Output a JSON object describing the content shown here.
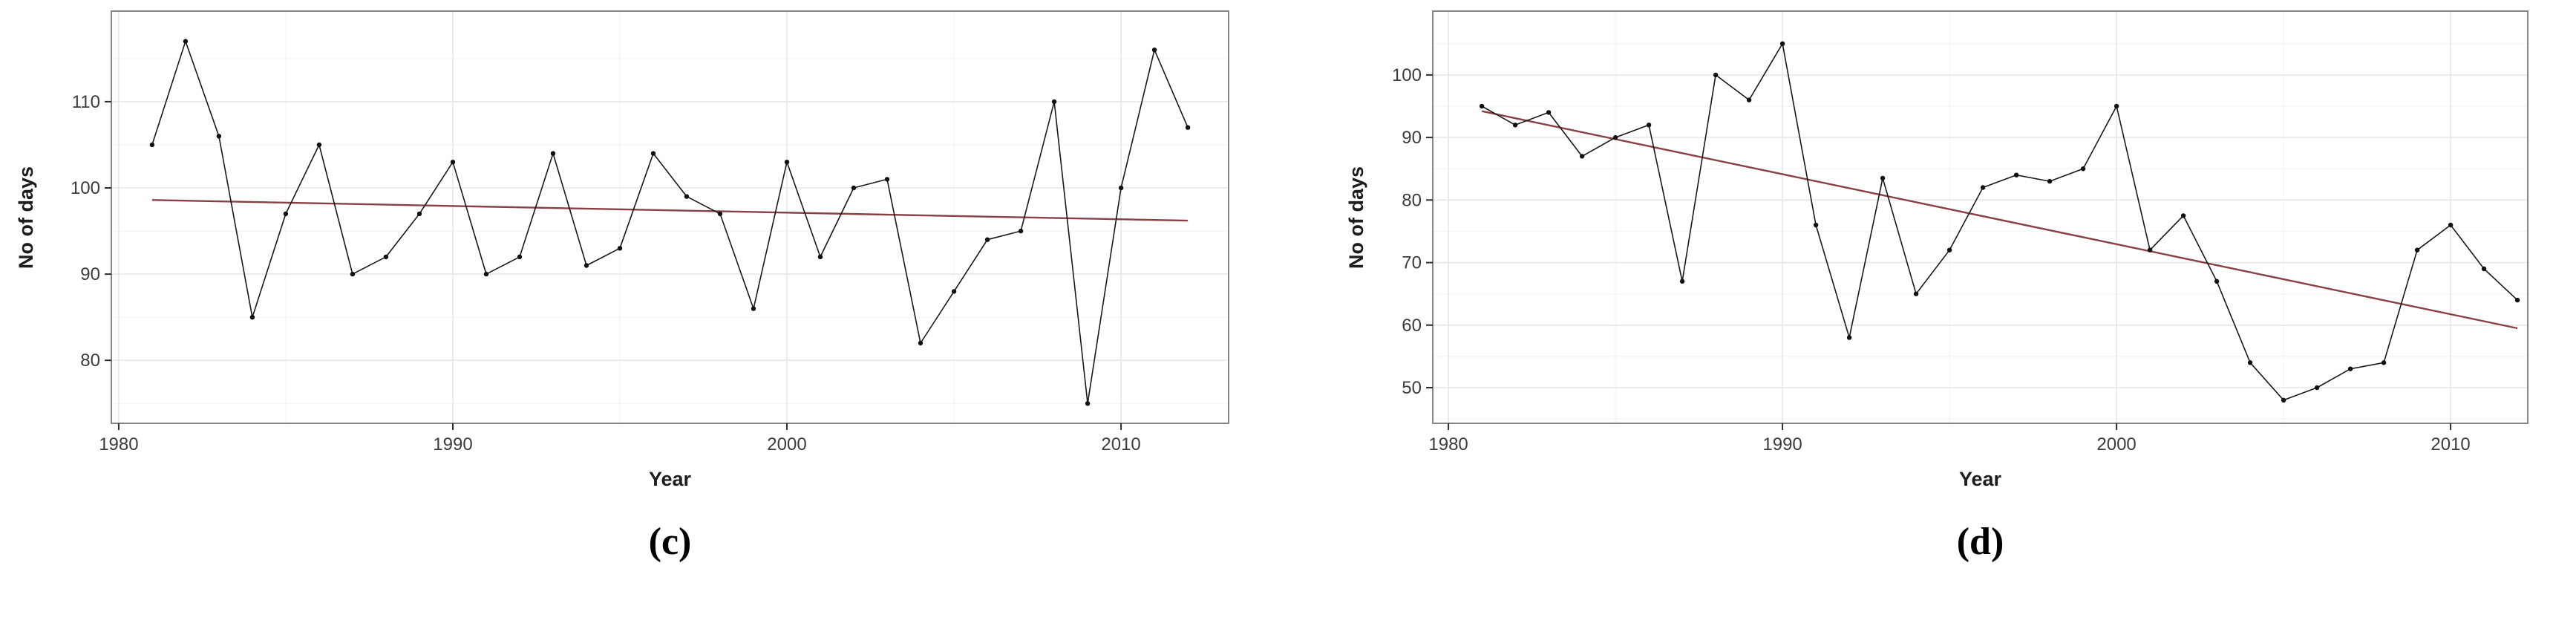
{
  "figure": {
    "background": "#ffffff",
    "description": "Two ggplot-style annual time series panels (c) and (d), 1981-2012, black line with point markers and dark-red linear trend line"
  },
  "chart_data": [
    {
      "id": "c",
      "type": "line",
      "caption": "(c)",
      "xlabel": "Year",
      "ylabel": "No of days",
      "legend": "none",
      "grid": "on",
      "x_ticks": [
        1980,
        1990,
        2000,
        2010
      ],
      "x_minor_ticks": [
        1985,
        1995,
        2005
      ],
      "y_ticks": [
        80,
        90,
        100,
        110
      ],
      "y_minor_ticks": [
        75,
        85,
        95,
        105,
        115
      ],
      "x_domain": [
        1979.78,
        2013.22
      ],
      "y_domain": [
        72.7,
        120.5
      ],
      "years": [
        1981,
        1982,
        1983,
        1984,
        1985,
        1986,
        1987,
        1988,
        1989,
        1990,
        1991,
        1992,
        1993,
        1994,
        1995,
        1996,
        1997,
        1998,
        1999,
        2000,
        2001,
        2002,
        2003,
        2004,
        2005,
        2006,
        2007,
        2008,
        2009,
        2010,
        2011,
        2012
      ],
      "values": [
        105,
        117,
        106,
        85,
        97,
        105,
        90,
        92,
        97,
        103,
        90,
        92,
        104,
        91,
        93,
        104,
        99,
        97,
        86,
        103,
        92,
        100,
        101,
        82,
        88,
        94,
        95,
        110,
        75,
        100,
        116,
        107
      ],
      "trend": {
        "x1": 1981,
        "y1": 98.6,
        "x2": 2012,
        "y2": 96.2
      },
      "colors": {
        "series": "#191919",
        "point": "#111111",
        "trend": "#874145",
        "grid_major": "#e7e7e7",
        "grid_minor": "#f4f4f4",
        "border": "#868686",
        "tick": "#2e2e2e",
        "tick_label": "#3c3c3c"
      }
    },
    {
      "id": "d",
      "type": "line",
      "caption": "(d)",
      "xlabel": "Year",
      "ylabel": "No of days",
      "legend": "none",
      "grid": "on",
      "x_ticks": [
        1980,
        1990,
        2000,
        2010
      ],
      "x_minor_ticks": [
        1985,
        1995,
        2005
      ],
      "y_ticks": [
        50,
        60,
        70,
        80,
        90,
        100
      ],
      "y_minor_ticks": [
        45,
        55,
        65,
        75,
        85,
        95,
        105
      ],
      "x_domain": [
        1979.53,
        2012.31
      ],
      "y_domain": [
        44.3,
        110.2
      ],
      "years": [
        1981,
        1982,
        1983,
        1984,
        1985,
        1986,
        1987,
        1988,
        1989,
        1990,
        1991,
        1992,
        1993,
        1994,
        1995,
        1996,
        1997,
        1998,
        1999,
        2000,
        2001,
        2002,
        2003,
        2004,
        2005,
        2006,
        2007,
        2008,
        2009,
        2010,
        2011,
        2012
      ],
      "values": [
        95,
        92,
        94,
        87,
        90,
        92,
        67,
        100,
        96,
        105,
        76,
        58,
        83.5,
        65,
        72,
        82,
        84,
        83,
        85,
        95,
        72,
        77.5,
        67,
        54,
        48,
        50,
        53,
        54,
        72,
        76,
        69,
        64
      ],
      "trend": {
        "x1": 1981,
        "y1": 94.2,
        "x2": 2012,
        "y2": 59.5
      },
      "colors": {
        "series": "#191919",
        "point": "#111111",
        "trend": "#874145",
        "grid_major": "#e7e7e7",
        "grid_minor": "#f4f4f4",
        "border": "#868686",
        "tick": "#2e2e2e",
        "tick_label": "#3c3c3c"
      }
    }
  ]
}
